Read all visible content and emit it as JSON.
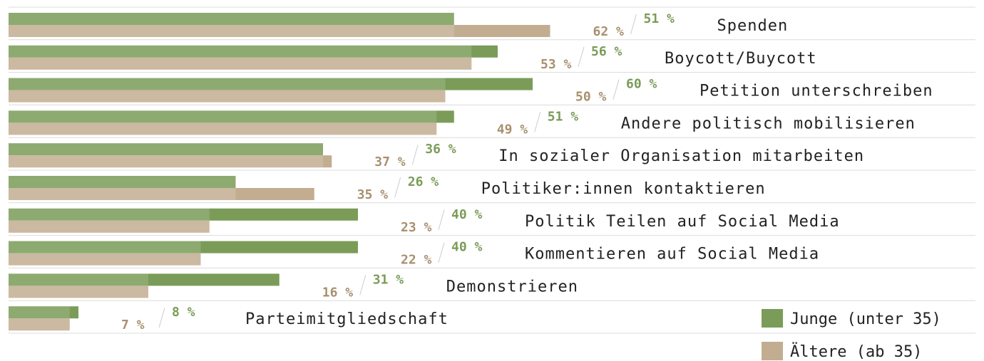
{
  "chart_data": {
    "type": "bar",
    "orientation": "horizontal",
    "categories": [
      "Spenden",
      "Boycott/Buycott",
      "Petition unterschreiben",
      "Andere politisch mobilisieren",
      "In sozialer Organisation mitarbeiten",
      "Politiker:innen kontaktieren",
      "Politik Teilen auf Social Media",
      "Kommentieren auf Social Media",
      "Demonstrieren",
      "Parteimitgliedschaft"
    ],
    "series": [
      {
        "name": "Junge (unter 35)",
        "color": "#7a9c58",
        "values": [
          51,
          56,
          60,
          51,
          36,
          26,
          40,
          40,
          31,
          8
        ],
        "value_labels": [
          "51 %",
          "56 %",
          "60 %",
          "51 %",
          "36 %",
          "26 %",
          "40 %",
          "40 %",
          "31 %",
          "8 %"
        ]
      },
      {
        "name": "Ältere (ab 35)",
        "color": "#c2ad91",
        "values": [
          62,
          53,
          50,
          49,
          37,
          35,
          23,
          22,
          16,
          7
        ],
        "value_labels": [
          "62 %",
          "53 %",
          "50 %",
          "49 %",
          "37 %",
          "35 %",
          "23 %",
          "22 %",
          "16 %",
          "7 %"
        ]
      }
    ],
    "legend": "bottom-right"
  }
}
